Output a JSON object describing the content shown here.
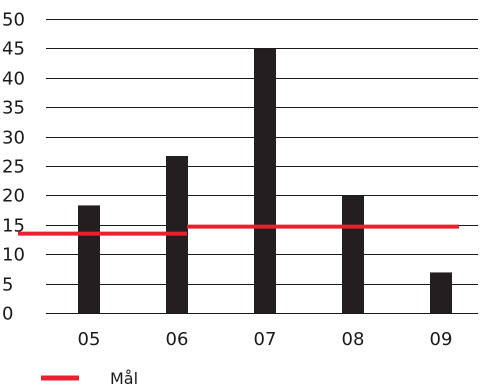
{
  "chart_data": {
    "type": "bar",
    "categories": [
      "05",
      "06",
      "07",
      "08",
      "09"
    ],
    "values": [
      18.3,
      26.7,
      45,
      20,
      6.9
    ],
    "ylim": [
      0,
      50
    ],
    "yticks": [
      0,
      5,
      10,
      15,
      20,
      25,
      30,
      35,
      40,
      45,
      50
    ],
    "grid": true,
    "bar_color": "#231f20",
    "target_series": {
      "name": "Mål",
      "color": "#e8202f",
      "segments": [
        {
          "from": "05",
          "to": "06",
          "value": 13.5
        },
        {
          "from": "06",
          "to": "09",
          "value": 14.7
        }
      ]
    },
    "legend": {
      "position": "bottom-left",
      "items": [
        "Mål"
      ]
    }
  }
}
